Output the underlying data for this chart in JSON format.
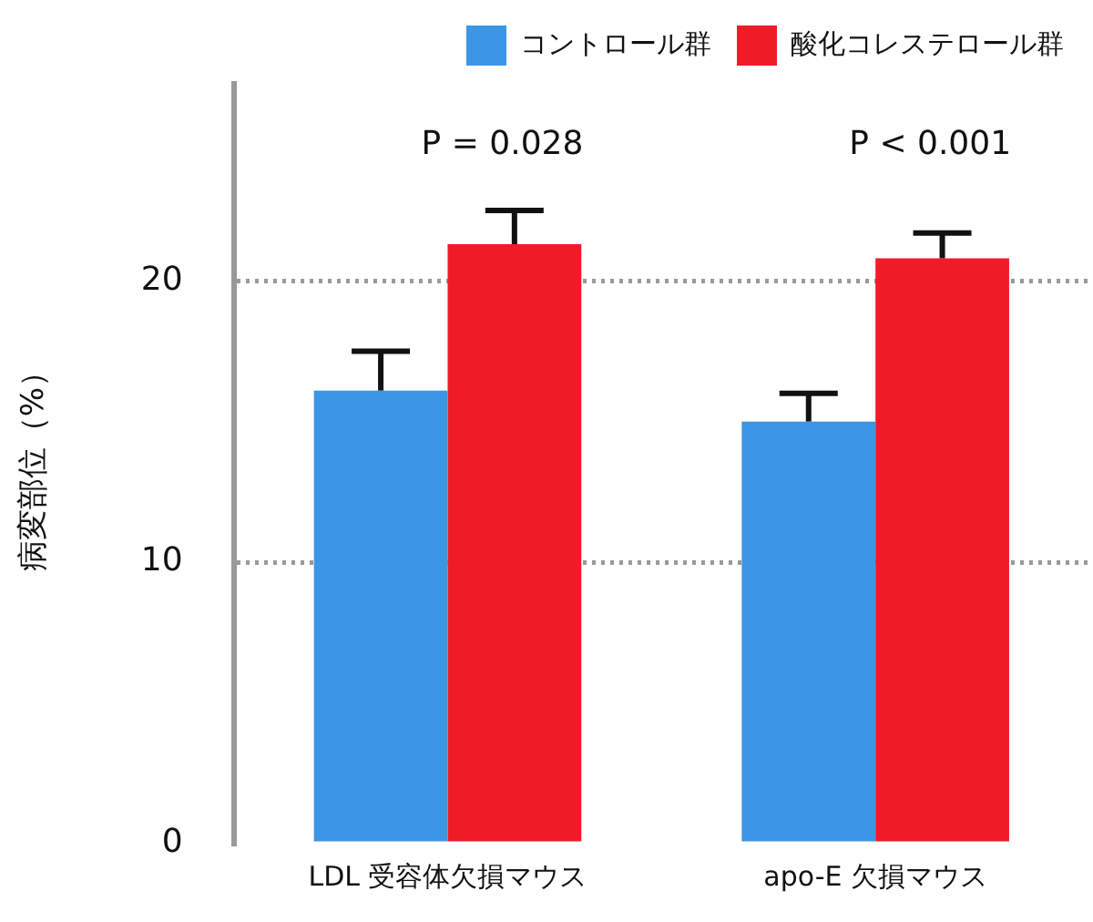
{
  "chart_data": {
    "type": "bar",
    "ylabel": "病変部位（%）",
    "categories": [
      "LDL 受容体欠損マウス",
      "apo-E 欠損マウス"
    ],
    "series": [
      {
        "name": "コントロール群",
        "color": "#3d95e6",
        "values": [
          16.1,
          15.0
        ],
        "errors": [
          [
            16.1,
            17.5
          ],
          [
            15.0,
            16.0
          ]
        ]
      },
      {
        "name": "酸化コレステロール群",
        "color": "#ef1c27",
        "values": [
          21.3,
          20.8
        ],
        "errors": [
          [
            21.3,
            22.5
          ],
          [
            20.8,
            21.7
          ]
        ]
      }
    ],
    "ylim": [
      0,
      27
    ],
    "yticks": [
      0,
      10,
      20
    ],
    "grid": "y",
    "line_style": "dotted",
    "legend": "top",
    "annotations": [
      "P = 0.028",
      "P < 0.001"
    ]
  }
}
